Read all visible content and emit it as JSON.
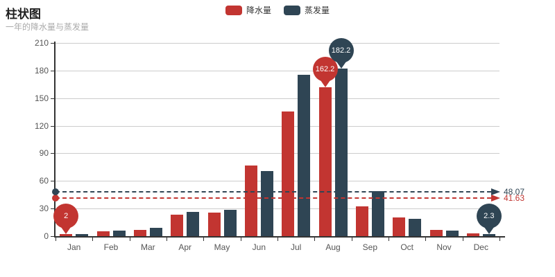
{
  "header": {
    "title": "柱状图",
    "subtitle": "一年的降水量与蒸发量"
  },
  "chart_data": {
    "type": "bar",
    "title": "柱状图",
    "subtitle": "一年的降水量与蒸发量",
    "legend_position": "top",
    "grid": true,
    "categories": [
      "Jan",
      "Feb",
      "Mar",
      "Apr",
      "May",
      "Jun",
      "Jul",
      "Aug",
      "Sep",
      "Oct",
      "Nov",
      "Dec"
    ],
    "ylim": [
      0,
      210
    ],
    "y_ticks": [
      0,
      30,
      60,
      90,
      120,
      150,
      180,
      210
    ],
    "series": [
      {
        "name": "降水量",
        "color": "#c23531",
        "values": [
          2.0,
          4.9,
          7.0,
          23.2,
          25.6,
          76.7,
          135.6,
          162.2,
          32.6,
          20.0,
          6.4,
          3.3
        ],
        "mark_points": [
          {
            "type": "max",
            "category": "Aug",
            "value": 162.2,
            "label": "162.2"
          },
          {
            "type": "min",
            "category": "Jan",
            "value": 2.0,
            "label": "2"
          }
        ],
        "average": 41.63,
        "average_label": "41.63"
      },
      {
        "name": "蒸发量",
        "color": "#2f4554",
        "values": [
          2.6,
          5.9,
          9.0,
          26.4,
          28.7,
          70.7,
          175.6,
          182.2,
          48.7,
          18.8,
          6.0,
          2.3
        ],
        "mark_points": [
          {
            "type": "max",
            "category": "Aug",
            "value": 182.2,
            "label": "182.2"
          },
          {
            "type": "min",
            "category": "Dec",
            "value": 2.3,
            "label": "2.3"
          }
        ],
        "average": 48.07,
        "average_label": "48.07"
      }
    ]
  }
}
